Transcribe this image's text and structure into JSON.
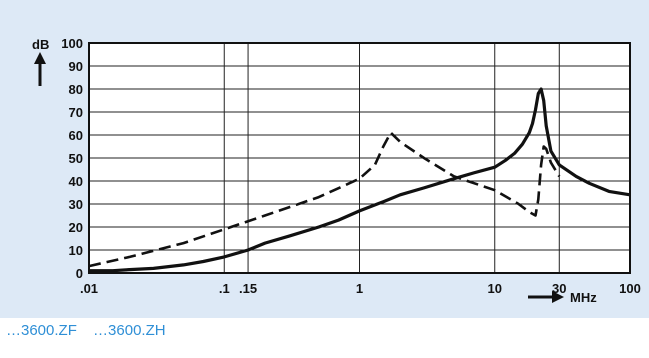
{
  "chart_data": {
    "type": "line",
    "x_scale": "log",
    "xlim": [
      0.01,
      100
    ],
    "ylim": [
      0,
      100
    ],
    "grid": true,
    "ylabel": "dB",
    "xlabel": "MHz",
    "x_ticks": [
      {
        "value": 0.01,
        "label": ".01"
      },
      {
        "value": 0.1,
        "label": ".1"
      },
      {
        "value": 0.15,
        "label": ".15"
      },
      {
        "value": 1,
        "label": "1"
      },
      {
        "value": 10,
        "label": "10"
      },
      {
        "value": 30,
        "label": "30"
      },
      {
        "value": 100,
        "label": "100"
      }
    ],
    "y_ticks": [
      {
        "value": 0,
        "label": "0"
      },
      {
        "value": 10,
        "label": "10"
      },
      {
        "value": 20,
        "label": "20"
      },
      {
        "value": 30,
        "label": "30"
      },
      {
        "value": 40,
        "label": "40"
      },
      {
        "value": 50,
        "label": "50"
      },
      {
        "value": 60,
        "label": "60"
      },
      {
        "value": 70,
        "label": "70"
      },
      {
        "value": 80,
        "label": "80"
      },
      {
        "value": 90,
        "label": "90"
      },
      {
        "value": 100,
        "label": "100"
      }
    ],
    "series": [
      {
        "style": "solid",
        "x": [
          0.01,
          0.015,
          0.02,
          0.03,
          0.05,
          0.07,
          0.1,
          0.15,
          0.2,
          0.3,
          0.5,
          0.7,
          1,
          1.5,
          2,
          3,
          5,
          7,
          10,
          12,
          14,
          16,
          18,
          19,
          20,
          21,
          22,
          23,
          24,
          26,
          30,
          40,
          50,
          70,
          100
        ],
        "y": [
          1,
          1,
          1.5,
          2,
          3.5,
          5,
          7,
          10,
          13,
          16,
          20,
          23,
          27,
          31,
          34,
          37,
          41,
          43.5,
          46,
          49,
          52,
          56,
          61,
          65,
          71,
          78,
          80,
          75,
          64,
          53,
          47,
          42,
          39,
          35.5,
          34
        ]
      },
      {
        "style": "dashed",
        "x": [
          0.01,
          0.02,
          0.05,
          0.1,
          0.2,
          0.5,
          1,
          1.3,
          1.5,
          1.7,
          2,
          3,
          5,
          10,
          15,
          18,
          20,
          21,
          22,
          23,
          24,
          26,
          30
        ],
        "y": [
          3,
          7,
          13,
          19,
          25,
          33,
          41,
          47,
          55,
          61,
          57,
          50,
          42,
          36,
          30,
          26.5,
          25,
          32,
          47,
          55,
          54,
          48,
          42
        ]
      }
    ]
  },
  "caption": {
    "items": [
      "…3600.ZF",
      "…3600.ZH"
    ]
  }
}
